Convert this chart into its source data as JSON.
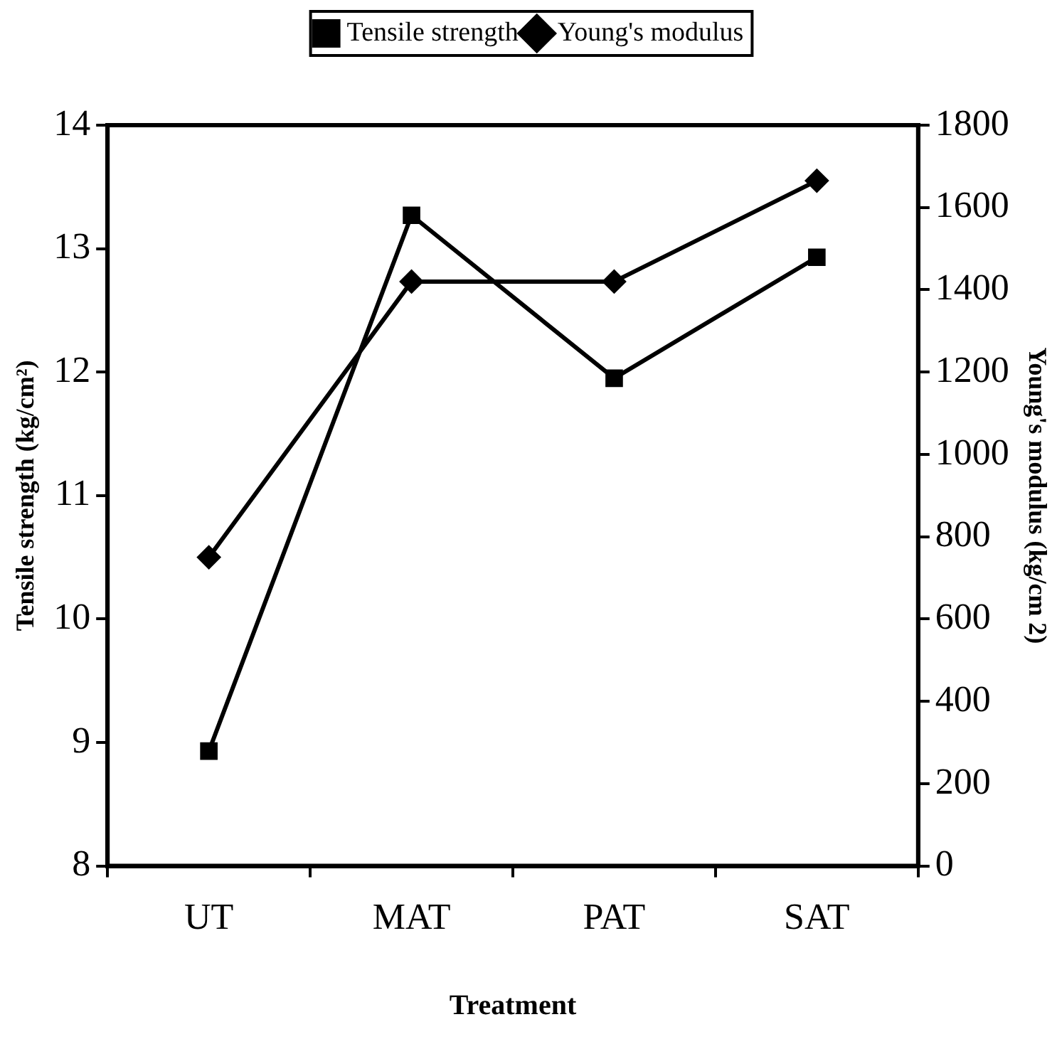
{
  "chart_data": {
    "type": "line",
    "xlabel": "Treatment",
    "ylabel": "Tensile strength (kg/cm²)",
    "y2label": "Young's modulus (kg/cm 2)",
    "categories": [
      "UT",
      "MAT",
      "PAT",
      "SAT"
    ],
    "series": [
      {
        "name": "Tensile strength",
        "color": "#000000",
        "marker": "square",
        "values": [
          8.93,
          13.27,
          11.95,
          12.93
        ]
      },
      {
        "name": "Young's modulus",
        "color": "#000000",
        "marker": "diamond",
        "axis": "y2",
        "values": [
          750,
          1420,
          1420,
          1665
        ]
      }
    ],
    "ylim": [
      8,
      14
    ],
    "yticks": [
      8,
      9,
      10,
      11,
      12,
      13,
      14
    ],
    "y2lim": [
      0,
      1800
    ],
    "y2ticks": [
      0,
      200,
      400,
      600,
      800,
      1000,
      1200,
      1400,
      1600,
      1800
    ],
    "legend": "top",
    "line_style": "solid"
  }
}
